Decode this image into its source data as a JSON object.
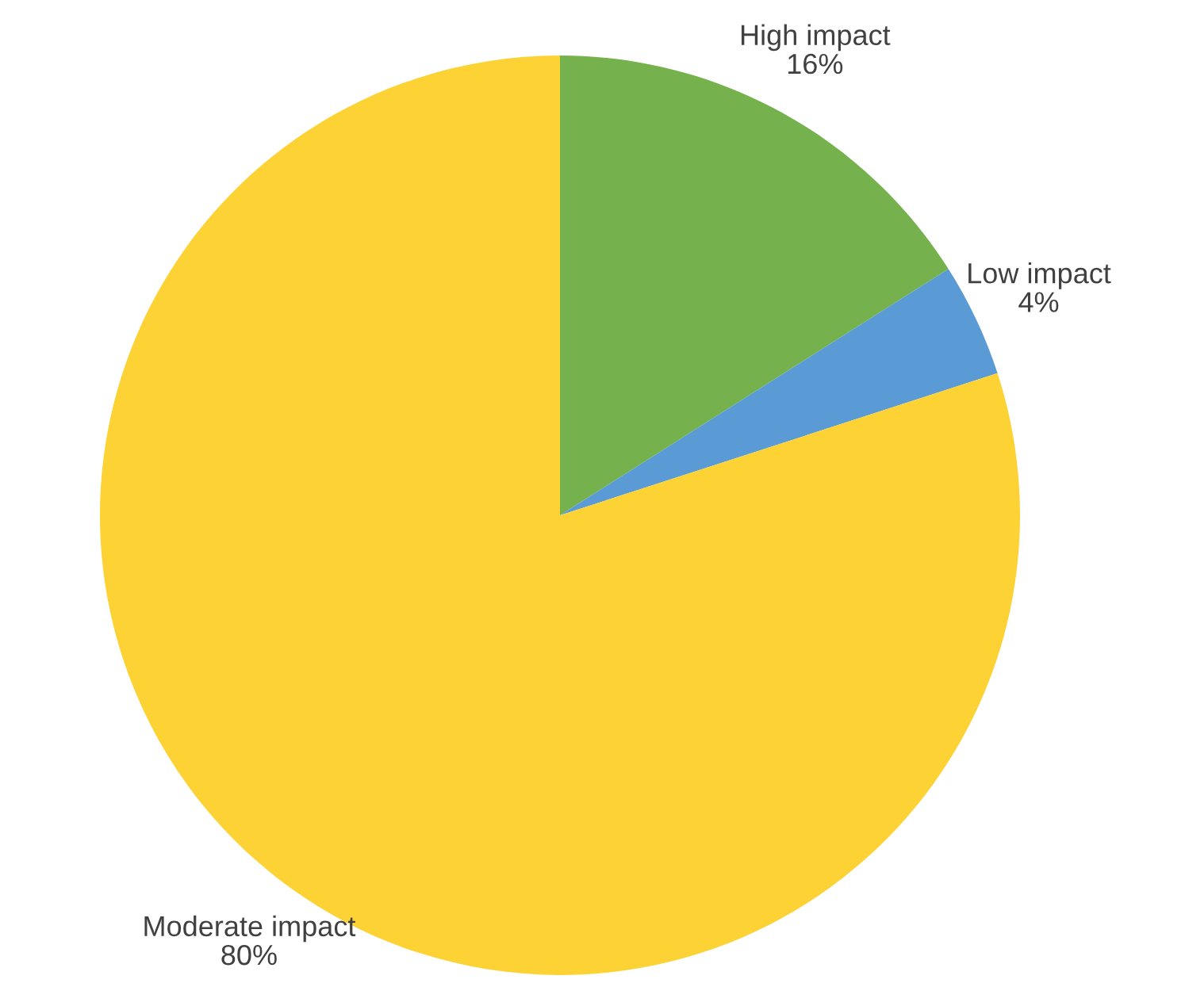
{
  "chart_data": {
    "type": "pie",
    "categories": [
      "High impact",
      "Low impact",
      "Moderate impact"
    ],
    "values": [
      16,
      4,
      80
    ],
    "value_labels": [
      "16%",
      "4%",
      "80%"
    ],
    "colors": [
      "#75b14d",
      "#5b9bd5",
      "#fdd235"
    ]
  }
}
